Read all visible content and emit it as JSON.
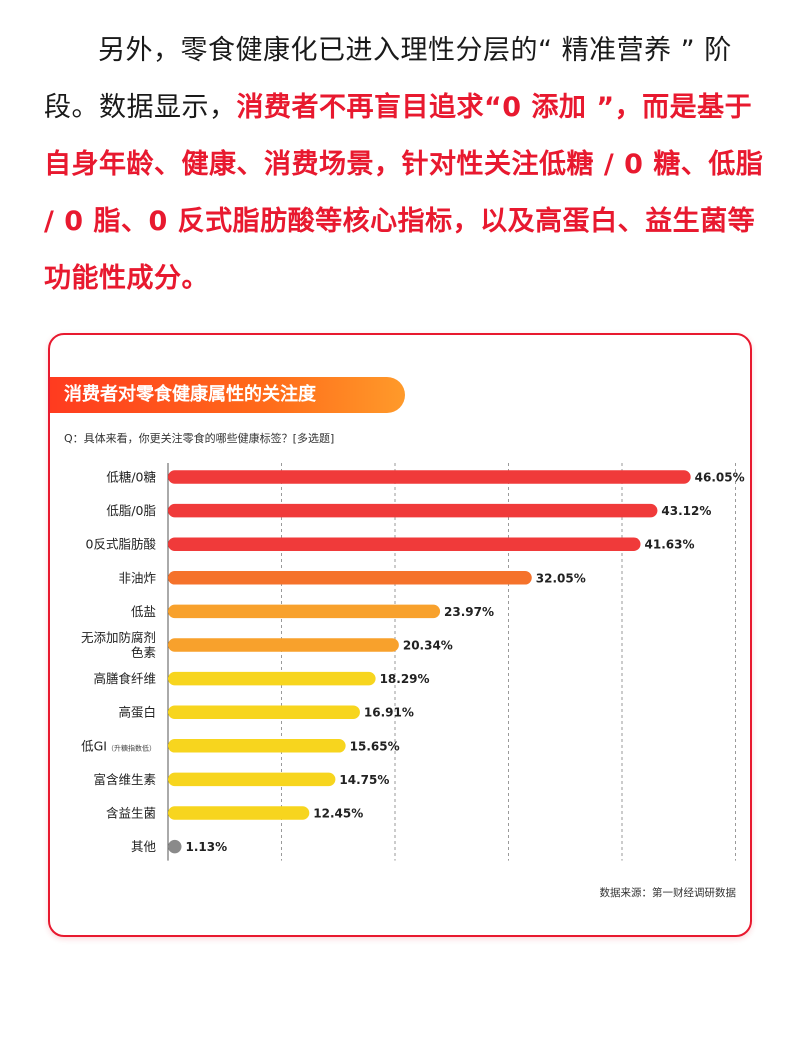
{
  "intro": {
    "part1": "另外，零食健康化已进入理性分层的“ 精准营养 ” 阶段。数据显示，",
    "highlight": "消费者不再盲目追求“0 添加 ”，而是基于自身年龄、健康、消费场景，针对性关注低糖 / 0 糖、低脂 / 0 脂、0 反式脂肪酸等核心指标，以及高蛋白、益生菌等功能性成分。"
  },
  "card": {
    "title": "消费者对零食健康属性的关注度",
    "question": "Q：具体来看，你更关注零食的哪些健康标签？[多选题]",
    "source": "数据来源：第一财经调研数据"
  },
  "chart_data": {
    "type": "bar",
    "orientation": "horizontal",
    "title": "消费者对零食健康属性的关注度",
    "xlim": [
      0,
      50
    ],
    "grid": true,
    "categories": [
      {
        "label": "低糖/0糖",
        "note": ""
      },
      {
        "label": "低脂/0脂",
        "note": ""
      },
      {
        "label": "0反式脂肪酸",
        "note": ""
      },
      {
        "label": "非油炸",
        "note": ""
      },
      {
        "label": "低盐",
        "note": ""
      },
      {
        "label": "无添加防腐剂\n色素",
        "note": ""
      },
      {
        "label": "高膳食纤维",
        "note": ""
      },
      {
        "label": "高蛋白",
        "note": ""
      },
      {
        "label": "低GI",
        "note": "（升糖指数低）"
      },
      {
        "label": "富含维生素",
        "note": ""
      },
      {
        "label": "含益生菌",
        "note": ""
      },
      {
        "label": "其他",
        "note": ""
      }
    ],
    "values": [
      46.05,
      43.12,
      41.63,
      32.05,
      23.97,
      20.34,
      18.29,
      16.91,
      15.65,
      14.75,
      12.45,
      1.13
    ],
    "value_labels": [
      "46.05%",
      "43.12%",
      "41.63%",
      "32.05%",
      "23.97%",
      "20.34%",
      "18.29%",
      "16.91%",
      "15.65%",
      "14.75%",
      "12.45%",
      "1.13%"
    ],
    "colors": [
      "#f03a3a",
      "#f03a3a",
      "#f03a3a",
      "#f5722b",
      "#f8a12c",
      "#f8a12c",
      "#f7d51e",
      "#f7d51e",
      "#f7d51e",
      "#f7d51e",
      "#f7d51e",
      "#8a8a8a"
    ]
  }
}
